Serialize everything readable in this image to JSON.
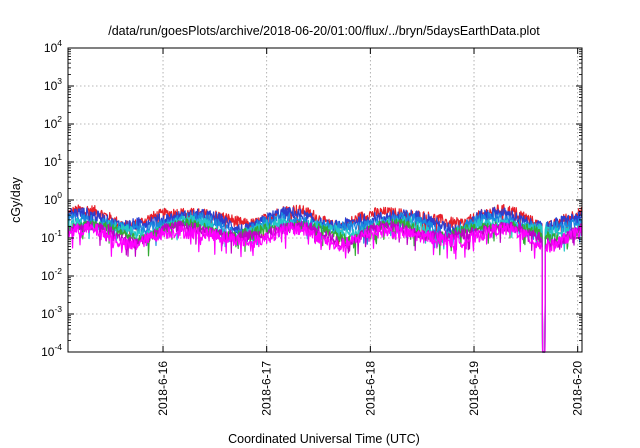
{
  "chart_data": {
    "type": "line",
    "title": "/data/run/goesPlots/archive/2018-06-20/01:00/flux/../bryn/5daysEarthData.plot",
    "xlabel": "Coordinated Universal Time (UTC)",
    "ylabel": "cGy/day",
    "yscale": "log",
    "ylim": [
      0.0001,
      10000
    ],
    "xlim": [
      "2018-06-15 02:00",
      "2018-06-20 01:00"
    ],
    "grid": true,
    "legend": "none",
    "x_ticks": [
      "2018-6-16",
      "2018-6-17",
      "2018-6-18",
      "2018-6-19",
      "2018-6-20"
    ],
    "y_ticks": [
      {
        "base": "10",
        "exp": "-4"
      },
      {
        "base": "10",
        "exp": "-3"
      },
      {
        "base": "10",
        "exp": "-2"
      },
      {
        "base": "10",
        "exp": "-1"
      },
      {
        "base": "10",
        "exp": "0"
      },
      {
        "base": "10",
        "exp": "1"
      },
      {
        "base": "10",
        "exp": "2"
      },
      {
        "base": "10",
        "exp": "3"
      },
      {
        "base": "10",
        "exp": "4"
      }
    ],
    "series": [
      {
        "color": "#e8202a",
        "level": 0.38,
        "spread": 0.3
      },
      {
        "color": "#2a3fd0",
        "level": 0.32,
        "spread": 0.32
      },
      {
        "color": "#1a88e0",
        "level": 0.25,
        "spread": 0.3
      },
      {
        "color": "#22c8c8",
        "level": 0.2,
        "spread": 0.28
      },
      {
        "color": "#33aa33",
        "level": 0.17,
        "spread": 0.26
      },
      {
        "color": "#c000c8",
        "level": 0.15,
        "spread": 0.28
      },
      {
        "color": "#ff00ff",
        "level": 0.12,
        "spread": 0.34
      }
    ],
    "dropouts": [
      {
        "start": "2018-06-19 15:45",
        "end": "2018-06-19 16:30",
        "value": 0.0001
      }
    ]
  }
}
